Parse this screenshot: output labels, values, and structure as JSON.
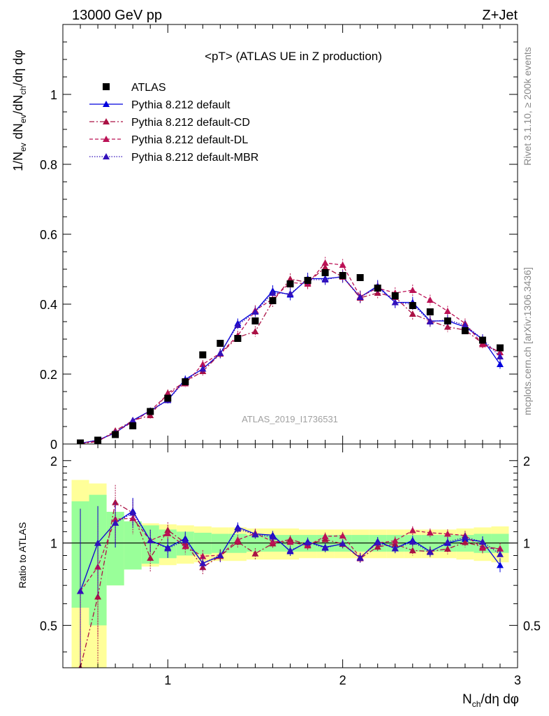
{
  "header": {
    "energy_label": "13000 GeV pp",
    "process_label": "Z+Jet",
    "plot_title": "<pT> (ATLAS UE in Z production)",
    "analysis_id": "ATLAS_2019_I1736531",
    "side_label_top": "Rivet 3.1.10, ≥ 200k events",
    "side_label_bottom": "mcplots.cern.ch [arXiv:1306.3436]"
  },
  "chart_data": {
    "type": "line",
    "xlabel": "N_ch/dη dφ",
    "ylabel_main": "1/N_ev dN_ev/dN_ch/dη dφ",
    "ylabel_ratio": "Ratio to ATLAS",
    "xlim": [
      0.4,
      3.0
    ],
    "ylim_main": [
      0,
      1.2
    ],
    "ylim_ratio": [
      0.35,
      2.3
    ],
    "ratio_scale": "log",
    "xticks": [
      1,
      2,
      3
    ],
    "xtick_labels": [
      "1",
      "2",
      "3"
    ],
    "yticks_main": [
      0,
      0.2,
      0.4,
      0.6,
      0.8,
      1
    ],
    "ytick_labels_main": [
      "0",
      "0.2",
      "0.4",
      "0.6",
      "0.8",
      "1"
    ],
    "yticks_ratio": [
      0.5,
      1,
      2
    ],
    "ytick_labels_ratio": [
      "0.5",
      "1",
      "2"
    ],
    "legend_position": "top-left",
    "x": [
      0.5,
      0.6,
      0.7,
      0.8,
      0.9,
      1.0,
      1.1,
      1.2,
      1.3,
      1.4,
      1.5,
      1.6,
      1.7,
      1.8,
      1.9,
      2.0,
      2.1,
      2.2,
      2.3,
      2.4,
      2.5,
      2.6,
      2.7,
      2.8,
      2.9
    ],
    "series": [
      {
        "name": "ATLAS",
        "style": "data",
        "color": "#000000",
        "values": [
          0.003,
          0.011,
          0.027,
          0.052,
          0.093,
          0.131,
          0.178,
          0.255,
          0.288,
          0.302,
          0.352,
          0.41,
          0.458,
          0.468,
          0.49,
          0.482,
          0.476,
          0.446,
          0.424,
          0.396,
          0.378,
          0.352,
          0.324,
          0.297,
          0.275
        ],
        "band_inner": [
          0.42,
          0.5,
          0.3,
          0.2,
          0.16,
          0.12,
          0.1,
          0.09,
          0.08,
          0.08,
          0.07,
          0.07,
          0.07,
          0.07,
          0.07,
          0.07,
          0.07,
          0.07,
          0.07,
          0.07,
          0.07,
          0.07,
          0.07,
          0.08,
          0.08
        ],
        "band_outer": [
          0.7,
          0.65,
          0.3,
          0.2,
          0.18,
          0.17,
          0.16,
          0.15,
          0.14,
          0.14,
          0.13,
          0.13,
          0.13,
          0.12,
          0.12,
          0.12,
          0.12,
          0.12,
          0.12,
          0.12,
          0.12,
          0.12,
          0.13,
          0.14,
          0.15
        ]
      },
      {
        "name": "Pythia 8.212 default",
        "style": "solid",
        "color": "#0000dd",
        "values": [
          0.002,
          0.011,
          0.032,
          0.068,
          0.095,
          0.126,
          0.185,
          0.215,
          0.258,
          0.345,
          0.38,
          0.438,
          0.427,
          0.473,
          0.473,
          0.478,
          0.42,
          0.452,
          0.405,
          0.405,
          0.352,
          0.352,
          0.335,
          0.3,
          0.228
        ],
        "errors": [
          0.002,
          0.004,
          0.006,
          0.008,
          0.009,
          0.01,
          0.011,
          0.012,
          0.013,
          0.014,
          0.015,
          0.016,
          0.016,
          0.017,
          0.017,
          0.017,
          0.017,
          0.017,
          0.016,
          0.016,
          0.015,
          0.015,
          0.014,
          0.014,
          0.013
        ]
      },
      {
        "name": "Pythia 8.212 default-CD",
        "style": "dashdot",
        "color": "#aa1144",
        "values": [
          0.001,
          0.007,
          0.038,
          0.067,
          0.082,
          0.146,
          0.178,
          0.208,
          0.258,
          0.305,
          0.322,
          0.408,
          0.472,
          0.462,
          0.505,
          0.478,
          0.418,
          0.432,
          0.42,
          0.372,
          0.352,
          0.335,
          0.326,
          0.288,
          0.262
        ],
        "errors": [
          0.001,
          0.003,
          0.006,
          0.008,
          0.009,
          0.01,
          0.011,
          0.012,
          0.013,
          0.014,
          0.015,
          0.016,
          0.016,
          0.017,
          0.017,
          0.017,
          0.017,
          0.017,
          0.016,
          0.016,
          0.015,
          0.015,
          0.014,
          0.014,
          0.013
        ]
      },
      {
        "name": "Pythia 8.212 default-DL",
        "style": "dashed",
        "color": "#bb1155",
        "values": [
          0.002,
          0.009,
          0.033,
          0.064,
          0.095,
          0.142,
          0.173,
          0.228,
          0.26,
          0.31,
          0.382,
          0.415,
          0.462,
          0.458,
          0.518,
          0.512,
          0.422,
          0.446,
          0.432,
          0.44,
          0.412,
          0.38,
          0.345,
          0.285,
          0.262
        ],
        "errors": [
          0.002,
          0.004,
          0.006,
          0.008,
          0.009,
          0.01,
          0.011,
          0.012,
          0.013,
          0.014,
          0.015,
          0.016,
          0.016,
          0.017,
          0.017,
          0.017,
          0.017,
          0.017,
          0.016,
          0.016,
          0.015,
          0.015,
          0.014,
          0.014,
          0.013
        ]
      },
      {
        "name": "Pythia 8.212 default-MBR",
        "style": "dotted",
        "color": "#3311bb",
        "values": [
          0.002,
          0.011,
          0.032,
          0.067,
          0.095,
          0.125,
          0.182,
          0.215,
          0.26,
          0.34,
          0.378,
          0.432,
          0.43,
          0.47,
          0.47,
          0.48,
          0.42,
          0.448,
          0.405,
          0.4,
          0.35,
          0.355,
          0.34,
          0.3,
          0.25
        ],
        "errors": [
          0.002,
          0.004,
          0.006,
          0.008,
          0.009,
          0.01,
          0.011,
          0.012,
          0.013,
          0.014,
          0.015,
          0.016,
          0.016,
          0.017,
          0.017,
          0.017,
          0.017,
          0.017,
          0.016,
          0.016,
          0.015,
          0.015,
          0.014,
          0.014,
          0.013
        ]
      }
    ]
  }
}
